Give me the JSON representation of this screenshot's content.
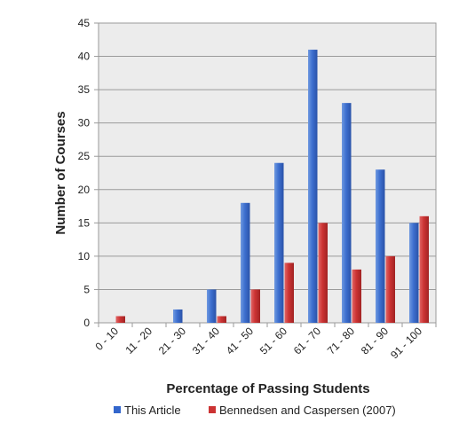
{
  "chart_data": {
    "type": "bar",
    "title": "",
    "xlabel": "Percentage of Passing Students",
    "ylabel": "Number of Courses",
    "categories": [
      "0 - 10",
      "11 - 20",
      "21 - 30",
      "31 - 40",
      "41 - 50",
      "51 - 60",
      "61 - 70",
      "71 - 80",
      "81 - 90",
      "91 - 100"
    ],
    "ylim": [
      0,
      45
    ],
    "yticks": [
      0,
      5,
      10,
      15,
      20,
      25,
      30,
      35,
      40,
      45
    ],
    "grid": true,
    "legend_position": "bottom",
    "series": [
      {
        "name": "This Article",
        "color": "#3366cc",
        "values": [
          0,
          0,
          2,
          5,
          18,
          24,
          41,
          33,
          23,
          15
        ]
      },
      {
        "name": "Bennedsen and Caspersen (2007)",
        "color": "#cc3333",
        "values": [
          1,
          0,
          0,
          1,
          5,
          9,
          15,
          8,
          10,
          16
        ]
      }
    ]
  }
}
